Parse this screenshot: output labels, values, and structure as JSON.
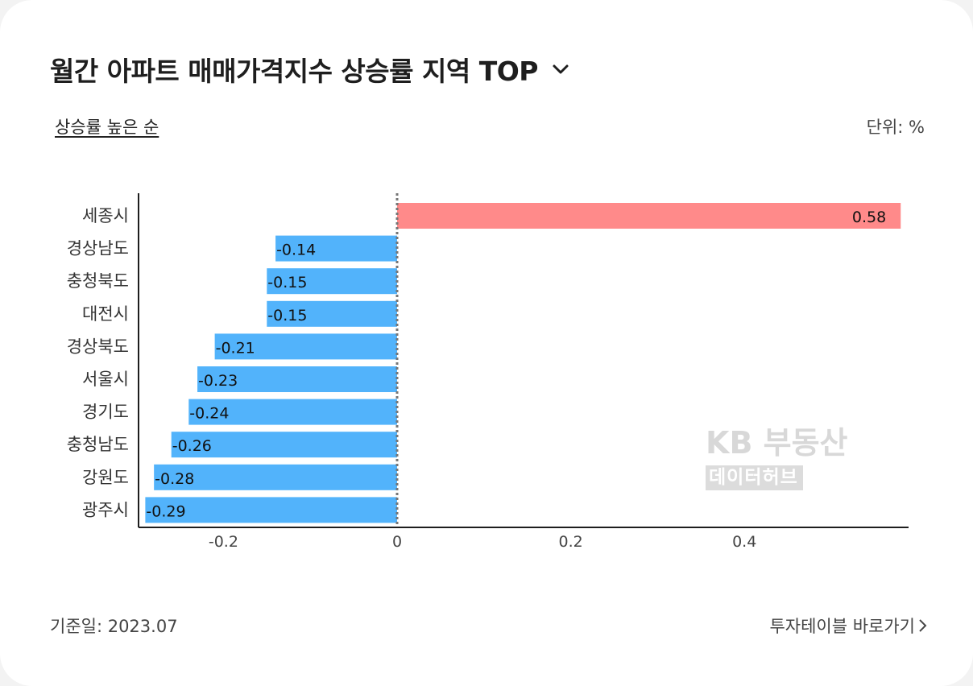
{
  "header": {
    "title": "월간 아파트 매매가격지수 상승률 지역 TOP",
    "dropdown_icon": "chevron-down-icon"
  },
  "controls": {
    "sort_label": "상승률 높은 순",
    "unit_label": "단위: %"
  },
  "watermark": {
    "line1": "KB 부동산",
    "line2": "데이터허브"
  },
  "footer": {
    "base_date": "기준일: 2023.07",
    "link_label": "투자테이블 바로가기",
    "link_icon": "chevron-right-icon"
  },
  "colors": {
    "positive": "#ff8a8a",
    "negative": "#52b3fb",
    "axis": "#1e1e1e",
    "zero_line": "#777777"
  },
  "chart_data": {
    "type": "bar",
    "orientation": "horizontal",
    "categories": [
      "세종시",
      "경상남도",
      "충청북도",
      "대전시",
      "경상북도",
      "서울시",
      "경기도",
      "충청남도",
      "강원도",
      "광주시"
    ],
    "values": [
      0.58,
      -0.14,
      -0.15,
      -0.15,
      -0.21,
      -0.23,
      -0.24,
      -0.26,
      -0.28,
      -0.29
    ],
    "value_labels": [
      "0.58",
      "-0.14",
      "-0.15",
      "-0.15",
      "-0.21",
      "-0.23",
      "-0.24",
      "-0.26",
      "-0.28",
      "-0.29"
    ],
    "xticks": [
      -0.2,
      0,
      0.2,
      0.4
    ],
    "xtick_labels": [
      "-0.2",
      "0",
      "0.2",
      "0.4"
    ],
    "xlim": [
      -0.29,
      0.59
    ],
    "grid": false,
    "legend": "none"
  }
}
